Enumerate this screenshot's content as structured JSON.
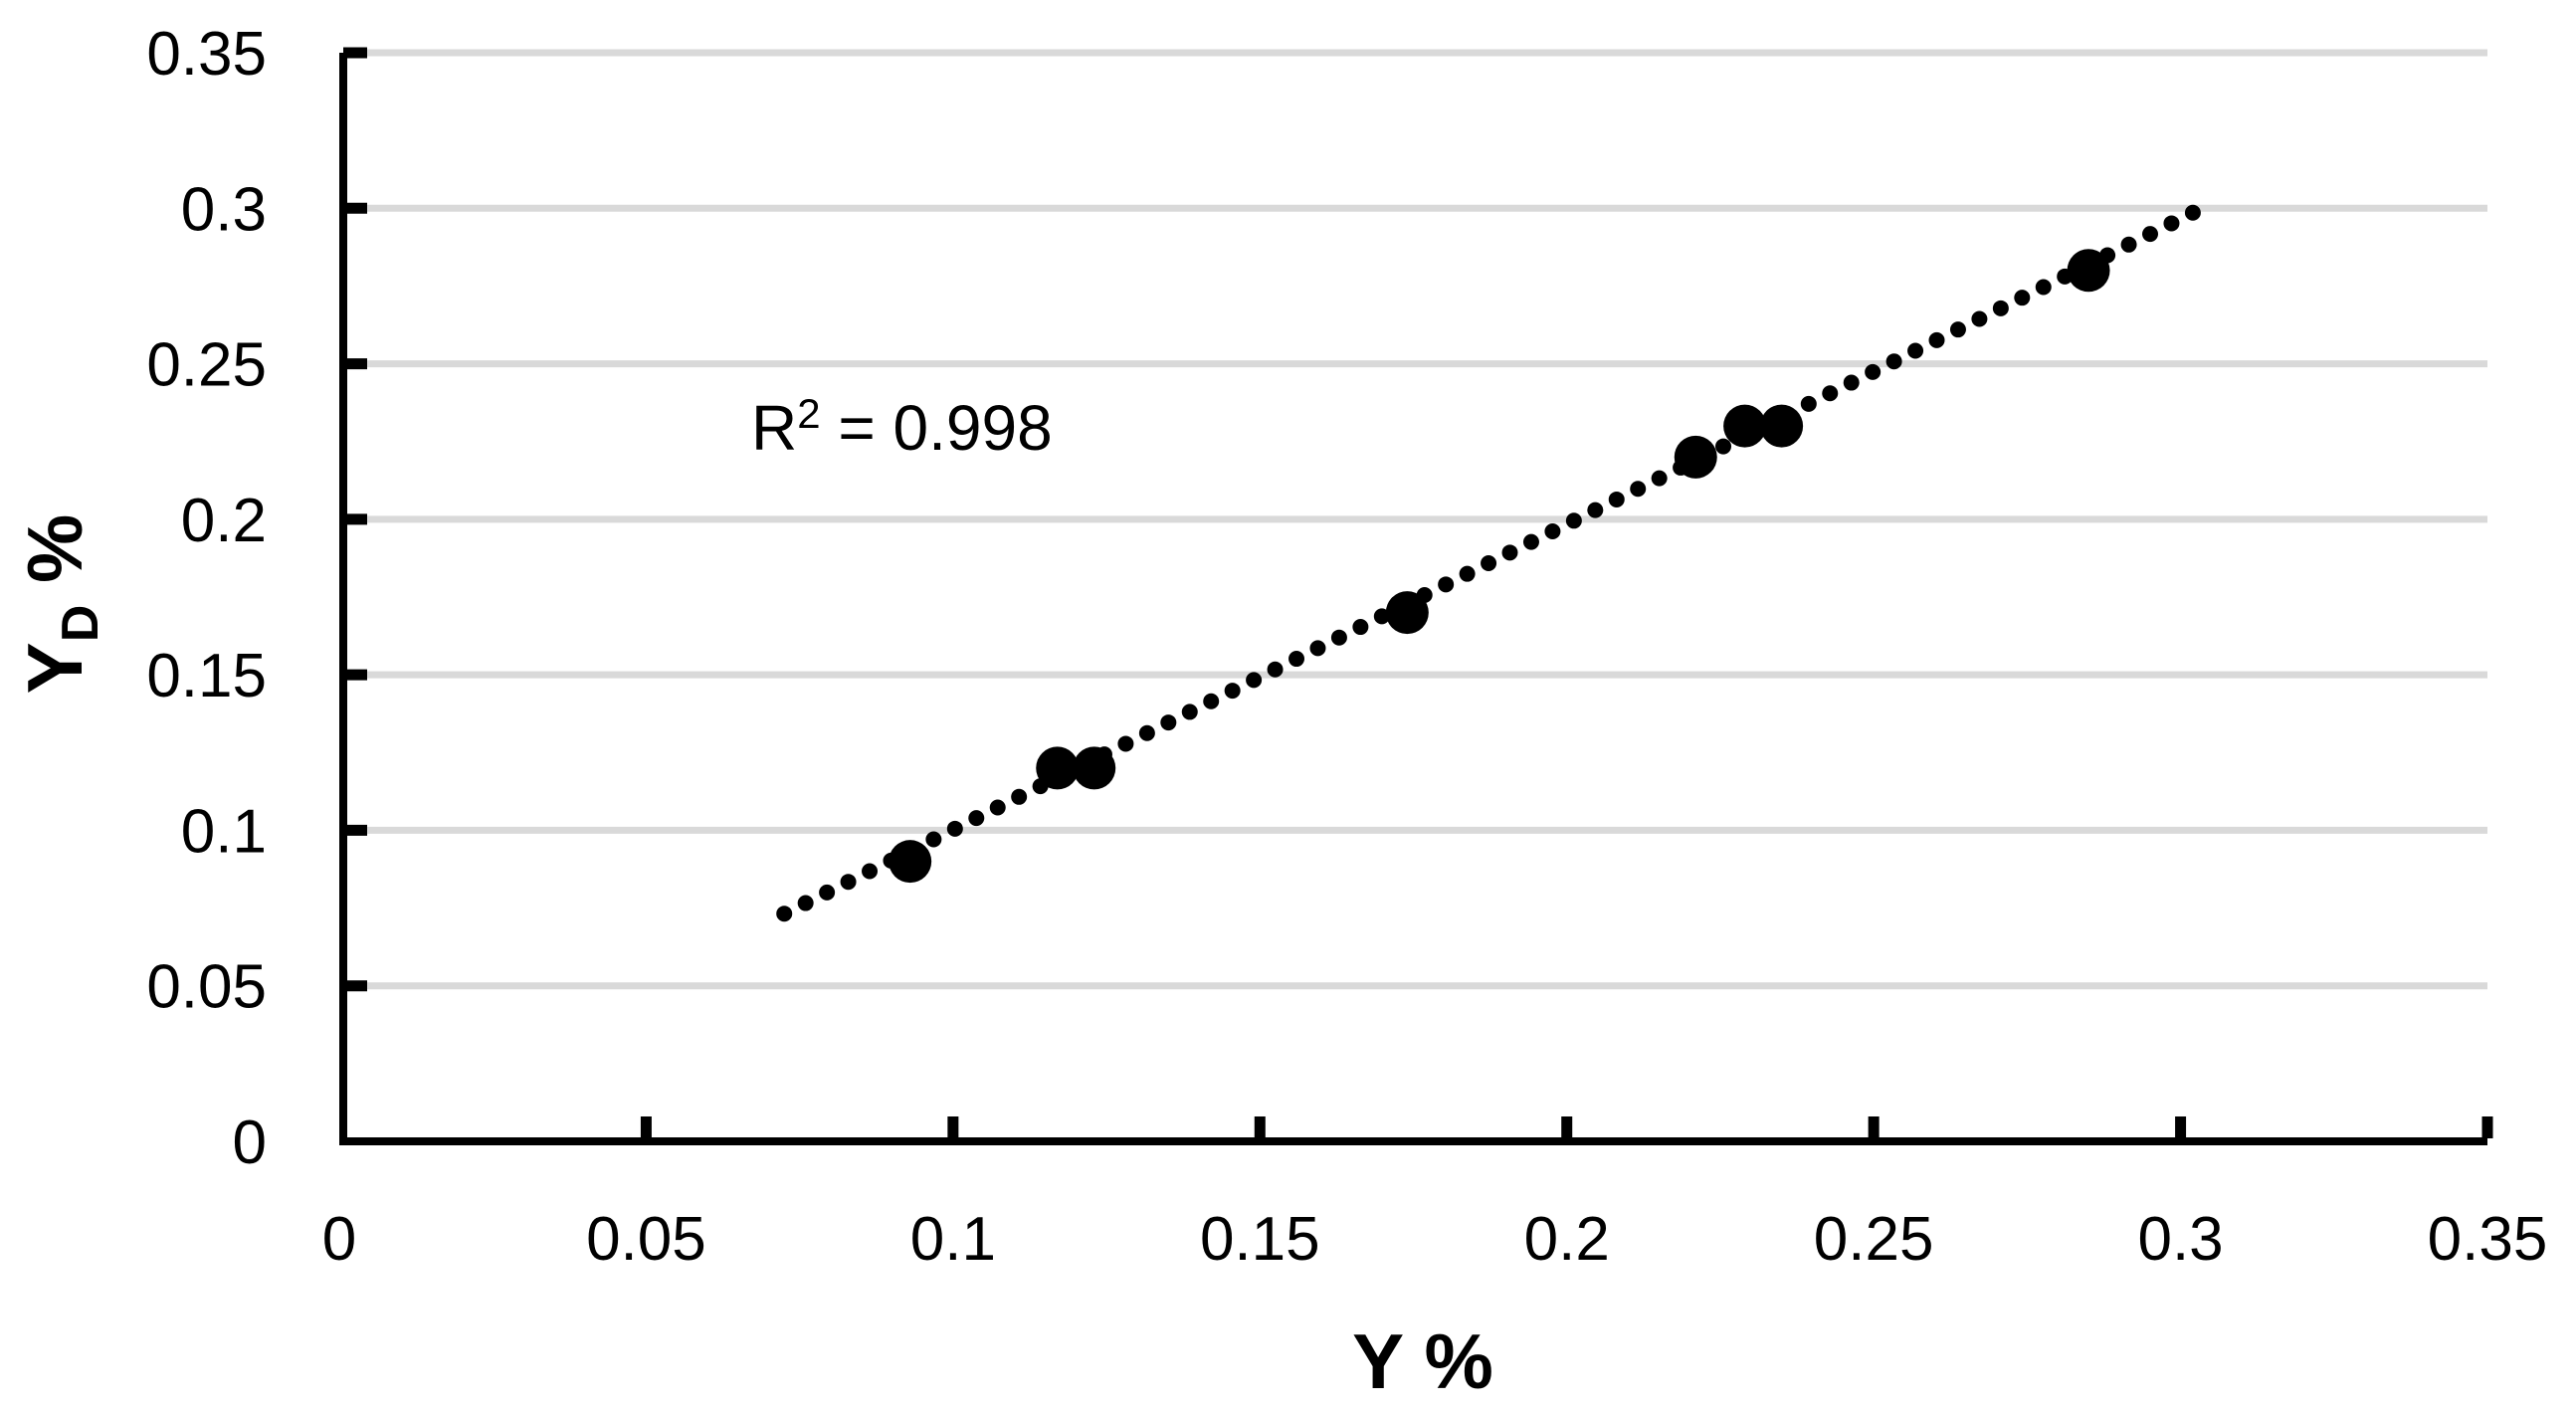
{
  "figure": {
    "background": "#ffffff",
    "axis_color": "#000000",
    "gridline_color": "#d9d9d9",
    "marker_color": "#000000",
    "trendline_color": "#000000"
  },
  "chart_data": {
    "type": "scatter",
    "title": "",
    "xlabel": "Y %",
    "ylabel": "Y_D %",
    "ylabel_parts": {
      "main": "Y",
      "sub": "D",
      "suffix": " %"
    },
    "xlim": [
      0,
      0.35
    ],
    "ylim": [
      0,
      0.35
    ],
    "xticks": [
      0,
      0.05,
      0.1,
      0.15,
      0.2,
      0.25,
      0.3,
      0.35
    ],
    "yticks": [
      0,
      0.05,
      0.1,
      0.15,
      0.2,
      0.25,
      0.3,
      0.35
    ],
    "grid": "horizontal",
    "legend": "none",
    "points": [
      {
        "x": 0.093,
        "y": 0.09
      },
      {
        "x": 0.117,
        "y": 0.12
      },
      {
        "x": 0.123,
        "y": 0.12
      },
      {
        "x": 0.174,
        "y": 0.17
      },
      {
        "x": 0.221,
        "y": 0.22
      },
      {
        "x": 0.229,
        "y": 0.23
      },
      {
        "x": 0.235,
        "y": 0.23
      },
      {
        "x": 0.285,
        "y": 0.28
      }
    ],
    "trendline": {
      "style": "dotted",
      "slope": 0.982,
      "intercept": 0.002,
      "x_start": 0.0725,
      "x_end": 0.302
    },
    "annotation": {
      "label": "R² = 0.998",
      "base": "R",
      "superscript": "2",
      "rest": " = 0.998"
    }
  }
}
